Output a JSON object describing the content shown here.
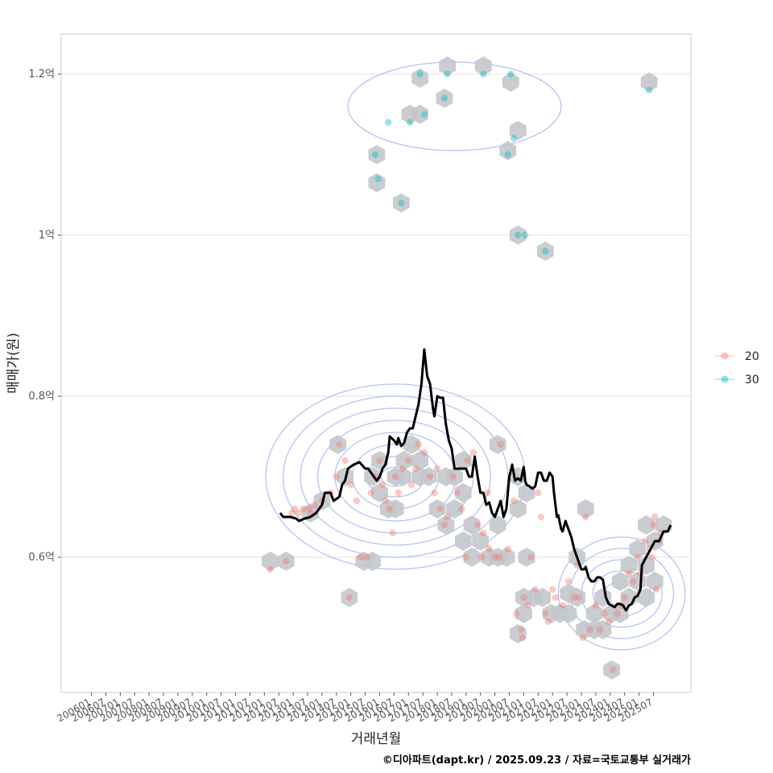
{
  "chart_data": {
    "type": "scatter",
    "xlabel": "거래년월",
    "ylabel": "매매가(원)",
    "caption": "©디아파트(dapt.kr) / 2025.09.23 / 자료=국토교통부 실거래가",
    "x_ticks": [
      "200601",
      "200607",
      "200701",
      "200707",
      "200801",
      "200807",
      "200901",
      "200907",
      "201001",
      "201007",
      "201101",
      "201107",
      "201201",
      "201207",
      "201301",
      "201307",
      "201401",
      "201407",
      "201501",
      "201507",
      "201601",
      "201607",
      "201701",
      "201707",
      "201801",
      "201807",
      "201901",
      "201907",
      "202001",
      "202007",
      "202101",
      "202107",
      "202201",
      "202207",
      "202301",
      "202307",
      "202401",
      "202407",
      "202501",
      "202507"
    ],
    "y_ticks": [
      {
        "value": 0.6,
        "label": "0.6억"
      },
      {
        "value": 0.8,
        "label": "0.8억"
      },
      {
        "value": 1.0,
        "label": "1억"
      },
      {
        "value": 1.2,
        "label": "1.2억"
      }
    ],
    "ylim": [
      0.432,
      1.25
    ],
    "xlim": [
      2004.95,
      2026.8
    ],
    "grid": "horizontal",
    "legend_position": "right",
    "colors": {
      "s20": "#F8766D",
      "s30": "#00BFC4",
      "hex": "#c3c8cc",
      "density": "#aab8f0",
      "line": "#000000",
      "grid": "#e3e3e3",
      "frame": "#cccccc"
    },
    "series": [
      {
        "name": "20",
        "points": [
          [
            2012.95,
            0.655
          ],
          [
            2013.05,
            0.66
          ],
          [
            2013.2,
            0.655
          ],
          [
            2013.35,
            0.66
          ],
          [
            2013.55,
            0.66
          ],
          [
            2013.6,
            0.655
          ],
          [
            2013.75,
            0.665
          ],
          [
            2014.0,
            0.67
          ],
          [
            2014.3,
            0.68
          ],
          [
            2014.5,
            0.7
          ],
          [
            2014.6,
            0.74
          ],
          [
            2014.8,
            0.72
          ],
          [
            2015.0,
            0.69
          ],
          [
            2015.2,
            0.67
          ],
          [
            2015.35,
            0.6
          ],
          [
            2015.55,
            0.6
          ],
          [
            2015.7,
            0.68
          ],
          [
            2015.85,
            0.7
          ],
          [
            2016.0,
            0.72
          ],
          [
            2016.1,
            0.69
          ],
          [
            2016.2,
            0.67
          ],
          [
            2016.35,
            0.66
          ],
          [
            2016.45,
            0.63
          ],
          [
            2016.55,
            0.7
          ],
          [
            2016.65,
            0.68
          ],
          [
            2016.8,
            0.71
          ],
          [
            2017.0,
            0.72
          ],
          [
            2017.1,
            0.69
          ],
          [
            2017.25,
            0.71
          ],
          [
            2017.35,
            0.74
          ],
          [
            2017.55,
            0.73
          ],
          [
            2017.75,
            0.7
          ],
          [
            2017.9,
            0.68
          ],
          [
            2018.0,
            0.71
          ],
          [
            2018.1,
            0.66
          ],
          [
            2018.25,
            0.64
          ],
          [
            2018.35,
            0.65
          ],
          [
            2018.55,
            0.7
          ],
          [
            2018.7,
            0.68
          ],
          [
            2018.85,
            0.66
          ],
          [
            2019.0,
            0.6
          ],
          [
            2019.05,
            0.72
          ],
          [
            2019.25,
            0.73
          ],
          [
            2019.4,
            0.64
          ],
          [
            2019.55,
            0.6
          ],
          [
            2019.6,
            0.63
          ],
          [
            2019.75,
            0.68
          ],
          [
            2019.8,
            0.61
          ],
          [
            2020.0,
            0.6
          ],
          [
            2020.15,
            0.6
          ],
          [
            2020.2,
            0.74
          ],
          [
            2020.45,
            0.61
          ],
          [
            2020.65,
            0.67
          ],
          [
            2020.75,
            0.53
          ],
          [
            2020.9,
            0.51
          ],
          [
            2020.95,
            0.5
          ],
          [
            2021.0,
            0.55
          ],
          [
            2021.15,
            0.54
          ],
          [
            2021.25,
            0.6
          ],
          [
            2021.4,
            0.56
          ],
          [
            2021.5,
            0.68
          ],
          [
            2021.6,
            0.65
          ],
          [
            2021.75,
            0.53
          ],
          [
            2021.85,
            0.52
          ],
          [
            2022.0,
            0.56
          ],
          [
            2022.1,
            0.55
          ],
          [
            2022.35,
            0.54
          ],
          [
            2022.55,
            0.57
          ],
          [
            2022.75,
            0.55
          ],
          [
            2022.85,
            0.59
          ],
          [
            2022.9,
            0.55
          ],
          [
            2023.05,
            0.5
          ],
          [
            2023.15,
            0.65
          ],
          [
            2023.3,
            0.51
          ],
          [
            2023.5,
            0.54
          ],
          [
            2023.65,
            0.51
          ],
          [
            2023.8,
            0.53
          ],
          [
            2023.95,
            0.52
          ],
          [
            2024.1,
            0.46
          ],
          [
            2024.25,
            0.53
          ],
          [
            2024.4,
            0.54
          ],
          [
            2024.5,
            0.55
          ],
          [
            2024.65,
            0.58
          ],
          [
            2024.8,
            0.57
          ],
          [
            2024.95,
            0.6
          ],
          [
            2025.05,
            0.58
          ],
          [
            2025.2,
            0.62
          ],
          [
            2025.35,
            0.61
          ],
          [
            2025.45,
            0.6
          ],
          [
            2025.5,
            0.64
          ],
          [
            2025.55,
            0.65
          ],
          [
            2025.6,
            0.56
          ],
          [
            2025.7,
            0.62
          ],
          [
            2025.75,
            0.63
          ],
          [
            2012.2,
            0.585
          ],
          [
            2012.75,
            0.595
          ],
          [
            2014.95,
            0.55
          ]
        ]
      },
      {
        "name": "30",
        "points": [
          [
            2015.85,
            1.1
          ],
          [
            2015.95,
            1.07
          ],
          [
            2016.3,
            1.14
          ],
          [
            2016.75,
            1.04
          ],
          [
            2017.05,
            1.14
          ],
          [
            2017.4,
            1.2
          ],
          [
            2017.55,
            1.15
          ],
          [
            2018.25,
            1.17
          ],
          [
            2018.35,
            1.2
          ],
          [
            2019.6,
            1.2
          ],
          [
            2020.45,
            1.1
          ],
          [
            2020.55,
            1.2
          ],
          [
            2020.65,
            1.12
          ],
          [
            2020.8,
            1.0
          ],
          [
            2021.05,
            1.0
          ],
          [
            2021.75,
            0.98
          ],
          [
            2025.35,
            1.18
          ]
        ]
      }
    ],
    "hex_bins": [
      [
        2012.2,
        0.595
      ],
      [
        2012.75,
        0.595
      ],
      [
        2013.6,
        0.655
      ],
      [
        2014.0,
        0.67
      ],
      [
        2014.55,
        0.74
      ],
      [
        2014.8,
        0.7
      ],
      [
        2015.45,
        0.595
      ],
      [
        2015.75,
        0.595
      ],
      [
        2015.75,
        0.7
      ],
      [
        2016.0,
        0.72
      ],
      [
        2016.0,
        0.68
      ],
      [
        2016.3,
        0.66
      ],
      [
        2016.55,
        0.66
      ],
      [
        2016.55,
        0.7
      ],
      [
        2016.85,
        0.72
      ],
      [
        2016.8,
        0.7
      ],
      [
        2017.1,
        0.74
      ],
      [
        2017.4,
        0.72
      ],
      [
        2017.4,
        0.7
      ],
      [
        2017.7,
        0.7
      ],
      [
        2018.0,
        0.66
      ],
      [
        2018.3,
        0.64
      ],
      [
        2018.3,
        0.7
      ],
      [
        2018.6,
        0.7
      ],
      [
        2018.6,
        0.66
      ],
      [
        2018.9,
        0.62
      ],
      [
        2018.9,
        0.68
      ],
      [
        2018.9,
        0.72
      ],
      [
        2019.2,
        0.64
      ],
      [
        2019.2,
        0.6
      ],
      [
        2019.5,
        0.62
      ],
      [
        2019.8,
        0.6
      ],
      [
        2020.1,
        0.6
      ],
      [
        2020.1,
        0.64
      ],
      [
        2020.1,
        0.74
      ],
      [
        2020.4,
        0.6
      ],
      [
        2020.8,
        0.66
      ],
      [
        2020.8,
        0.7
      ],
      [
        2021.1,
        0.68
      ],
      [
        2021.1,
        0.6
      ],
      [
        2021.0,
        0.55
      ],
      [
        2021.0,
        0.53
      ],
      [
        2020.8,
        0.505
      ],
      [
        2021.35,
        0.55
      ],
      [
        2021.65,
        0.55
      ],
      [
        2021.95,
        0.53
      ],
      [
        2022.25,
        0.53
      ],
      [
        2022.55,
        0.53
      ],
      [
        2022.55,
        0.555
      ],
      [
        2022.85,
        0.6
      ],
      [
        2022.85,
        0.55
      ],
      [
        2023.1,
        0.51
      ],
      [
        2023.15,
        0.66
      ],
      [
        2023.45,
        0.51
      ],
      [
        2023.45,
        0.53
      ],
      [
        2023.75,
        0.51
      ],
      [
        2023.75,
        0.55
      ],
      [
        2024.05,
        0.53
      ],
      [
        2024.05,
        0.46
      ],
      [
        2024.35,
        0.53
      ],
      [
        2024.35,
        0.57
      ],
      [
        2024.65,
        0.55
      ],
      [
        2024.65,
        0.59
      ],
      [
        2024.95,
        0.61
      ],
      [
        2024.95,
        0.57
      ],
      [
        2025.25,
        0.55
      ],
      [
        2025.25,
        0.59
      ],
      [
        2025.25,
        0.64
      ],
      [
        2025.55,
        0.62
      ],
      [
        2025.55,
        0.57
      ],
      [
        2025.85,
        0.64
      ],
      [
        2014.95,
        0.55
      ],
      [
        2015.9,
        1.1
      ],
      [
        2015.9,
        1.065
      ],
      [
        2016.75,
        1.04
      ],
      [
        2017.05,
        1.15
      ],
      [
        2017.4,
        1.15
      ],
      [
        2017.4,
        1.195
      ],
      [
        2018.25,
        1.17
      ],
      [
        2018.35,
        1.21
      ],
      [
        2019.6,
        1.21
      ],
      [
        2020.55,
        1.19
      ],
      [
        2020.45,
        1.105
      ],
      [
        2020.8,
        1.13
      ],
      [
        2020.8,
        1.0
      ],
      [
        2021.75,
        0.98
      ],
      [
        2025.35,
        1.19
      ]
    ],
    "trend_line": [
      [
        2012.55,
        0.655
      ],
      [
        2012.65,
        0.65
      ],
      [
        2012.9,
        0.65
      ],
      [
        2013.1,
        0.648
      ],
      [
        2013.2,
        0.645
      ],
      [
        2013.4,
        0.648
      ],
      [
        2013.6,
        0.65
      ],
      [
        2013.8,
        0.655
      ],
      [
        2013.9,
        0.66
      ],
      [
        2014.0,
        0.665
      ],
      [
        2014.1,
        0.68
      ],
      [
        2014.3,
        0.68
      ],
      [
        2014.4,
        0.67
      ],
      [
        2014.6,
        0.675
      ],
      [
        2014.7,
        0.69
      ],
      [
        2014.8,
        0.695
      ],
      [
        2014.9,
        0.71
      ],
      [
        2015.1,
        0.715
      ],
      [
        2015.3,
        0.718
      ],
      [
        2015.5,
        0.71
      ],
      [
        2015.6,
        0.71
      ],
      [
        2015.8,
        0.7
      ],
      [
        2015.9,
        0.695
      ],
      [
        2016.0,
        0.7
      ],
      [
        2016.1,
        0.71
      ],
      [
        2016.2,
        0.715
      ],
      [
        2016.3,
        0.73
      ],
      [
        2016.35,
        0.75
      ],
      [
        2016.5,
        0.745
      ],
      [
        2016.6,
        0.74
      ],
      [
        2016.65,
        0.748
      ],
      [
        2016.75,
        0.738
      ],
      [
        2016.85,
        0.742
      ],
      [
        2016.95,
        0.755
      ],
      [
        2017.05,
        0.76
      ],
      [
        2017.15,
        0.76
      ],
      [
        2017.25,
        0.775
      ],
      [
        2017.35,
        0.79
      ],
      [
        2017.45,
        0.815
      ],
      [
        2017.55,
        0.858
      ],
      [
        2017.65,
        0.825
      ],
      [
        2017.75,
        0.815
      ],
      [
        2017.85,
        0.785
      ],
      [
        2017.9,
        0.775
      ],
      [
        2018.0,
        0.8
      ],
      [
        2018.1,
        0.798
      ],
      [
        2018.2,
        0.798
      ],
      [
        2018.3,
        0.765
      ],
      [
        2018.4,
        0.745
      ],
      [
        2018.5,
        0.735
      ],
      [
        2018.6,
        0.71
      ],
      [
        2018.8,
        0.71
      ],
      [
        2019.0,
        0.71
      ],
      [
        2019.1,
        0.7
      ],
      [
        2019.2,
        0.7
      ],
      [
        2019.3,
        0.725
      ],
      [
        2019.4,
        0.7
      ],
      [
        2019.5,
        0.68
      ],
      [
        2019.6,
        0.68
      ],
      [
        2019.7,
        0.665
      ],
      [
        2019.8,
        0.668
      ],
      [
        2019.9,
        0.655
      ],
      [
        2020.0,
        0.65
      ],
      [
        2020.1,
        0.66
      ],
      [
        2020.2,
        0.67
      ],
      [
        2020.3,
        0.65
      ],
      [
        2020.4,
        0.66
      ],
      [
        2020.5,
        0.7
      ],
      [
        2020.6,
        0.715
      ],
      [
        2020.7,
        0.695
      ],
      [
        2020.8,
        0.698
      ],
      [
        2020.9,
        0.695
      ],
      [
        2021.0,
        0.712
      ],
      [
        2021.05,
        0.695
      ],
      [
        2021.1,
        0.69
      ],
      [
        2021.2,
        0.688
      ],
      [
        2021.3,
        0.685
      ],
      [
        2021.4,
        0.688
      ],
      [
        2021.5,
        0.705
      ],
      [
        2021.6,
        0.705
      ],
      [
        2021.7,
        0.695
      ],
      [
        2021.8,
        0.695
      ],
      [
        2021.9,
        0.705
      ],
      [
        2022.0,
        0.7
      ],
      [
        2022.05,
        0.68
      ],
      [
        2022.15,
        0.65
      ],
      [
        2022.2,
        0.652
      ],
      [
        2022.3,
        0.635
      ],
      [
        2022.35,
        0.632
      ],
      [
        2022.45,
        0.645
      ],
      [
        2022.55,
        0.635
      ],
      [
        2022.65,
        0.625
      ],
      [
        2022.75,
        0.61
      ],
      [
        2022.85,
        0.6
      ],
      [
        2022.9,
        0.595
      ],
      [
        2023.0,
        0.585
      ],
      [
        2023.1,
        0.585
      ],
      [
        2023.15,
        0.588
      ],
      [
        2023.25,
        0.575
      ],
      [
        2023.35,
        0.57
      ],
      [
        2023.45,
        0.57
      ],
      [
        2023.55,
        0.575
      ],
      [
        2023.65,
        0.575
      ],
      [
        2023.75,
        0.572
      ],
      [
        2023.85,
        0.55
      ],
      [
        2023.95,
        0.542
      ],
      [
        2024.05,
        0.54
      ],
      [
        2024.15,
        0.538
      ],
      [
        2024.25,
        0.542
      ],
      [
        2024.35,
        0.542
      ],
      [
        2024.45,
        0.54
      ],
      [
        2024.55,
        0.534
      ],
      [
        2024.65,
        0.54
      ],
      [
        2024.75,
        0.542
      ],
      [
        2024.85,
        0.55
      ],
      [
        2024.95,
        0.552
      ],
      [
        2025.05,
        0.56
      ],
      [
        2025.1,
        0.59
      ],
      [
        2025.25,
        0.6
      ],
      [
        2025.4,
        0.61
      ],
      [
        2025.55,
        0.62
      ],
      [
        2025.7,
        0.62
      ],
      [
        2025.85,
        0.632
      ],
      [
        2026.0,
        0.632
      ],
      [
        2026.1,
        0.64
      ]
    ],
    "density_contours": [
      {
        "series": "20",
        "center": [
          2016.55,
          0.7
        ],
        "rx": [
          0.5,
          1.0,
          1.5,
          2.1,
          2.7,
          3.3,
          3.9,
          4.5
        ],
        "ry": [
          0.012,
          0.025,
          0.04,
          0.055,
          0.07,
          0.085,
          0.1,
          0.115
        ]
      },
      {
        "series": "20",
        "center": [
          2024.4,
          0.555
        ],
        "rx": [
          0.6,
          1.0,
          1.4,
          1.8,
          2.2
        ],
        "ry": [
          0.015,
          0.028,
          0.042,
          0.056,
          0.07
        ]
      },
      {
        "series": "30",
        "center": [
          2018.6,
          1.16
        ],
        "rx": [
          3.7
        ],
        "ry": [
          0.055
        ]
      }
    ]
  }
}
